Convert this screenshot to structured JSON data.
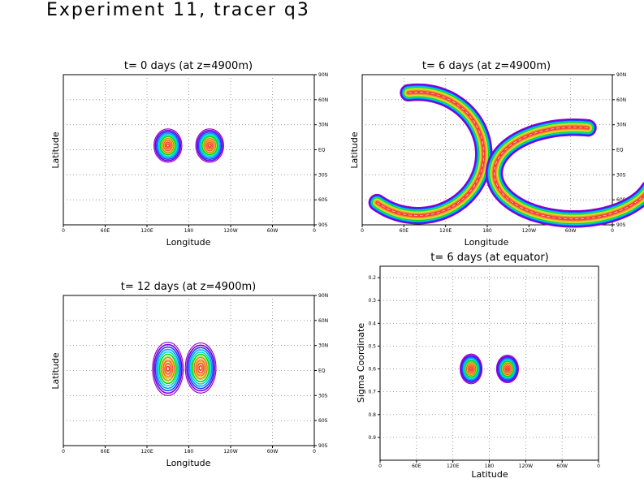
{
  "figure": {
    "title": "Experiment 11, tracer q3"
  },
  "contour_colors": [
    "#a000c8",
    "#6e00dc",
    "#1e3cff",
    "#00a0ff",
    "#00dcd2",
    "#00dc00",
    "#a0e632",
    "#e6dc32",
    "#e6af2d",
    "#f08228",
    "#fa3c3c"
  ],
  "chart_data": [
    {
      "type": "contour",
      "title": "t= 0 days (at z=4900m)",
      "xlabel": "Longitude",
      "ylabel": "Latitude",
      "xticks": [
        "0",
        "60E",
        "120E",
        "180",
        "120W",
        "60W",
        "0"
      ],
      "yticks_right": [
        "90N",
        "60N",
        "30N",
        "EQ",
        "30S",
        "60S",
        "90S"
      ],
      "xlim": [
        0,
        360
      ],
      "ylim": [
        -90,
        90
      ],
      "grid": true,
      "features": [
        {
          "name": "patch-west",
          "kind": "blob",
          "lon": 150,
          "lat": 5,
          "rlon": 20,
          "rlat": 20
        },
        {
          "name": "patch-east",
          "kind": "blob",
          "lon": 210,
          "lat": 5,
          "rlon": 20,
          "rlat": 20
        }
      ]
    },
    {
      "type": "contour",
      "title": "t= 6 days (at z=4900m)",
      "xlabel": "Longitude",
      "ylabel": "Latitude",
      "xticks": [
        "0",
        "60E",
        "120E",
        "180",
        "120W",
        "60W",
        "0"
      ],
      "yticks_right": [
        "90N",
        "60N",
        "30N",
        "EQ",
        "30S",
        "60S",
        "90S"
      ],
      "xlim": [
        0,
        360
      ],
      "ylim": [
        -90,
        90
      ],
      "grid": true,
      "features": [
        {
          "name": "arc-west",
          "kind": "arc",
          "lon": 80,
          "lat": -5,
          "rlon": 95,
          "rlat": 74,
          "a0": -128,
          "a1": 98,
          "width": 10
        },
        {
          "name": "arc-east",
          "kind": "arc",
          "lon": 305,
          "lat": -28,
          "rlon": 115,
          "rlat": 55,
          "a0": 80,
          "a1": 340,
          "width": 10
        }
      ]
    },
    {
      "type": "contour",
      "title": "t= 12 days (at z=4900m)",
      "xlabel": "Longitude",
      "ylabel": "Latitude",
      "xticks": [
        "0",
        "60E",
        "120E",
        "180",
        "120W",
        "60W",
        "0"
      ],
      "yticks_right": [
        "90N",
        "60N",
        "30N",
        "EQ",
        "30S",
        "60S",
        "90S"
      ],
      "xlim": [
        0,
        360
      ],
      "ylim": [
        -90,
        90
      ],
      "grid": true,
      "features": [
        {
          "name": "patch-west",
          "kind": "blob",
          "lon": 150,
          "lat": 2,
          "rlon": 22,
          "rlat": 32
        },
        {
          "name": "patch-east",
          "kind": "blob",
          "lon": 197,
          "lat": 3,
          "rlon": 22,
          "rlat": 30
        }
      ]
    },
    {
      "type": "contour",
      "title": "t= 6 days (at equator)",
      "xlabel": "Latitude",
      "ylabel": "Sigma Coordinate",
      "xticks": [
        "0",
        "60E",
        "120E",
        "180",
        "120W",
        "60W",
        "0"
      ],
      "yticks_left": [
        "0.2",
        "0.3",
        "0.4",
        "0.5",
        "0.6",
        "0.7",
        "0.8",
        "0.9"
      ],
      "xlim": [
        0,
        360
      ],
      "ylim": [
        0.15,
        1.0
      ],
      "grid": true,
      "features": [
        {
          "name": "patch-west",
          "kind": "blob",
          "lon": 150,
          "sigma": 0.6,
          "rlon": 18,
          "rsig": 0.065
        },
        {
          "name": "patch-east",
          "kind": "blob",
          "lon": 210,
          "sigma": 0.6,
          "rlon": 18,
          "rsig": 0.06
        }
      ]
    }
  ]
}
